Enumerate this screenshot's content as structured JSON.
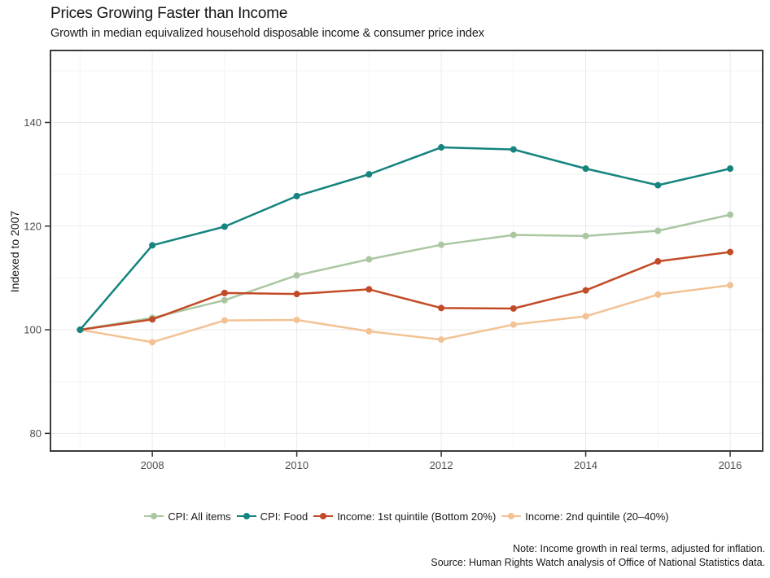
{
  "header": {
    "title": "Prices Growing Faster than Income",
    "subtitle": "Growth in median equivalized household disposable income & consumer price index"
  },
  "chart_data": {
    "type": "line",
    "title": "Prices Growing Faster than Income",
    "subtitle": "Growth in median equivalized household disposable income & consumer price index",
    "xlabel": "",
    "ylabel": "Indexed to 2007",
    "x": [
      2007,
      2008,
      2009,
      2010,
      2011,
      2012,
      2013,
      2014,
      2015,
      2016
    ],
    "x_ticks": [
      2008,
      2010,
      2012,
      2014,
      2016
    ],
    "x_minor_ticks": [
      2007,
      2009,
      2011,
      2013,
      2015
    ],
    "y_ticks": [
      80,
      100,
      120,
      140
    ],
    "y_minor_ticks": [
      90,
      110,
      130,
      150
    ],
    "xlim": [
      2006.59,
      2016.45
    ],
    "ylim": [
      76.6,
      153.9
    ],
    "grid": "major and minor, light gray, white panel, dark panel border",
    "legend_position": "bottom-center",
    "colors": {
      "major_grid": "#e9e9e9",
      "minor_grid": "#f4f4f4",
      "panel_border": "#3c3c3c",
      "tick": "#333333",
      "tick_label": "#4d4d4d"
    },
    "series": [
      {
        "name": "CPI: All items",
        "color": "#abc7a2",
        "values": [
          100,
          102.3,
          105.7,
          110.5,
          113.6,
          116.4,
          118.3,
          118.1,
          119.1,
          122.2
        ]
      },
      {
        "name": "CPI: Food",
        "color": "#15837e",
        "values": [
          100,
          116.3,
          119.9,
          125.8,
          130.0,
          135.2,
          134.8,
          131.1,
          127.9,
          131.1
        ]
      },
      {
        "name": "Income: 1st quintile (Bottom 20%)",
        "color": "#c24b27",
        "values": [
          100,
          102.0,
          107.1,
          106.9,
          107.8,
          104.2,
          104.1,
          107.6,
          113.2,
          115.0
        ]
      },
      {
        "name": "Income: 2nd quintile (20–40%)",
        "color": "#f3c294",
        "values": [
          100,
          97.6,
          101.8,
          101.9,
          99.7,
          98.1,
          101.0,
          102.6,
          106.8,
          108.6
        ]
      }
    ]
  },
  "notes": {
    "line1": "Note: Income growth in real terms, adjusted for inflation.",
    "line2": "Source: Human Rights Watch analysis of Office of National Statistics data."
  }
}
